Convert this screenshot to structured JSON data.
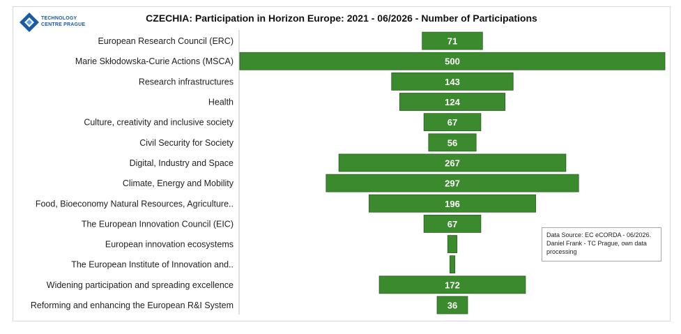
{
  "logo": {
    "line1": "TECHNOLOGY",
    "line2": "CENTRE PRAGUE"
  },
  "colors": {
    "bar": "#3c8a2e",
    "bar_stroke": "#2a5f20",
    "axis": "#bfbfbf"
  },
  "source_note": {
    "line1": "Data Source: EC eCORDA - 06/2026.",
    "line2": "Daniel Frank - TC Prague, own data processing"
  },
  "chart_data": {
    "type": "bar",
    "orientation": "horizontal-centered",
    "title": "CZECHIA: Participation in Horizon Europe: 2021 - 06/2026 - Number of Participations",
    "xlabel": "",
    "ylabel": "",
    "xlim": [
      0,
      500
    ],
    "grid": false,
    "legend": "none",
    "categories": [
      "European Research Council (ERC)",
      "Marie Skłodowska-Curie Actions (MSCA)",
      "Research infrastructures",
      "Health",
      "Culture, creativity and inclusive society",
      "Civil Security for Society",
      "Digital, Industry and Space",
      "Climate, Energy and Mobility",
      "Food, Bioeconomy Natural Resources, Agriculture..",
      "The European Innovation Council (EIC)",
      "European innovation ecosystems",
      "The European Institute of Innovation and..",
      "Widening participation and spreading excellence",
      "Reforming and enhancing the European R&I System"
    ],
    "values": [
      71,
      500,
      143,
      124,
      67,
      56,
      267,
      297,
      196,
      67,
      11,
      6,
      172,
      36
    ],
    "data_labels": [
      "71",
      "500",
      "143",
      "124",
      "67",
      "56",
      "267",
      "297",
      "196",
      "67",
      "",
      "",
      "172",
      "36"
    ]
  }
}
